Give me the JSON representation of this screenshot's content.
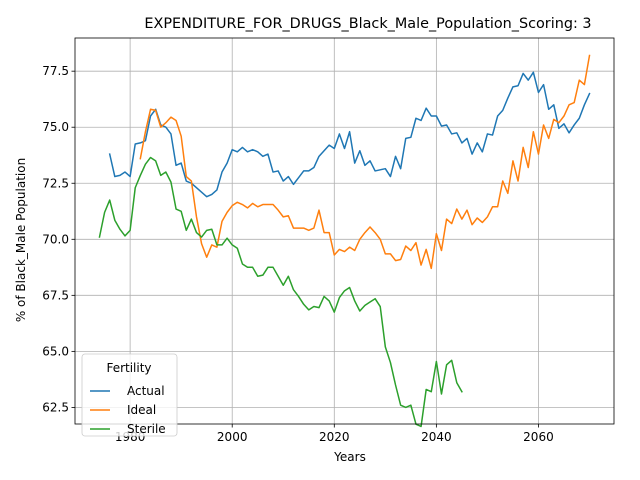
{
  "chart_data": {
    "type": "line",
    "title": "EXPENDITURE_FOR_DRUGS_Black_Male_Population_Scoring: 3",
    "xlabel": "Years",
    "ylabel": "% of Black_Male Population",
    "xlim": [
      1969.2,
      2074.8
    ],
    "ylim": [
      61.76,
      78.98
    ],
    "xticks": [
      1980,
      2000,
      2020,
      2040,
      2060
    ],
    "yticks": [
      62.5,
      65.0,
      67.5,
      70.0,
      72.5,
      75.0,
      77.5
    ],
    "ytick_labels": [
      "62.5",
      "65.0",
      "67.5",
      "70.0",
      "72.5",
      "75.0",
      "77.5"
    ],
    "grid": true,
    "legend": {
      "title": "Fertility",
      "position": "lower-left"
    },
    "series": [
      {
        "name": "Actual",
        "color": "#1f77b4",
        "x": [
          1976,
          1977,
          1978,
          1979,
          1980,
          1981,
          1982,
          1983,
          1984,
          1985,
          1986,
          1987,
          1988,
          1989,
          1990,
          1991,
          1992,
          1993,
          1994,
          1995,
          1996,
          1997,
          1998,
          1999,
          2000,
          2001,
          2002,
          2003,
          2004,
          2005,
          2006,
          2007,
          2008,
          2009,
          2010,
          2011,
          2012,
          2013,
          2014,
          2015,
          2016,
          2017,
          2018,
          2019,
          2020,
          2021,
          2022,
          2023,
          2024,
          2025,
          2026,
          2027,
          2028,
          2029,
          2030,
          2031,
          2032,
          2033,
          2034,
          2035,
          2036,
          2037,
          2038,
          2039,
          2040,
          2041,
          2042,
          2043,
          2044,
          2045,
          2046,
          2047,
          2048,
          2049,
          2050,
          2051,
          2052,
          2053,
          2054,
          2055,
          2056,
          2057,
          2058,
          2059,
          2060,
          2061,
          2062,
          2063,
          2064,
          2065,
          2066,
          2067,
          2068,
          2069,
          2070
        ],
        "y": [
          73.8,
          72.8,
          72.85,
          73.0,
          72.8,
          74.25,
          74.3,
          74.4,
          75.5,
          75.8,
          75.1,
          75.0,
          74.7,
          73.3,
          73.4,
          72.6,
          72.5,
          72.3,
          72.1,
          71.9,
          72.0,
          72.2,
          73.0,
          73.4,
          74.0,
          73.9,
          74.1,
          73.9,
          74.0,
          73.9,
          73.7,
          73.8,
          73.0,
          73.05,
          72.6,
          72.8,
          72.45,
          72.75,
          73.05,
          73.05,
          73.2,
          73.7,
          73.95,
          74.2,
          74.05,
          74.7,
          74.05,
          74.8,
          73.4,
          73.95,
          73.3,
          73.5,
          73.05,
          73.1,
          73.15,
          72.8,
          73.7,
          73.15,
          74.5,
          74.55,
          75.4,
          75.3,
          75.85,
          75.5,
          75.5,
          75.05,
          75.1,
          74.7,
          74.75,
          74.3,
          74.5,
          73.8,
          74.3,
          73.9,
          74.7,
          74.65,
          75.5,
          75.75,
          76.3,
          76.8,
          76.85,
          77.4,
          77.1,
          77.45,
          76.55,
          76.9,
          75.8,
          76.0,
          74.95,
          75.15,
          74.75,
          75.1,
          75.4,
          76.0,
          76.5
        ]
      },
      {
        "name": "Ideal",
        "color": "#ff7f0e",
        "x": [
          1982,
          1983,
          1984,
          1985,
          1986,
          1987,
          1988,
          1989,
          1990,
          1991,
          1992,
          1993,
          1994,
          1995,
          1996,
          1997,
          1998,
          1999,
          2000,
          2001,
          2002,
          2003,
          2004,
          2005,
          2006,
          2007,
          2008,
          2009,
          2010,
          2011,
          2012,
          2013,
          2014,
          2015,
          2016,
          2017,
          2018,
          2019,
          2020,
          2021,
          2022,
          2023,
          2024,
          2025,
          2026,
          2027,
          2028,
          2029,
          2030,
          2031,
          2032,
          2033,
          2034,
          2035,
          2036,
          2037,
          2038,
          2039,
          2040,
          2041,
          2042,
          2043,
          2044,
          2045,
          2046,
          2047,
          2048,
          2049,
          2050,
          2051,
          2052,
          2053,
          2054,
          2055,
          2056,
          2057,
          2058,
          2059,
          2060,
          2061,
          2062,
          2063,
          2064,
          2065,
          2066,
          2067,
          2068,
          2069,
          2070
        ],
        "y": [
          73.6,
          74.8,
          75.8,
          75.75,
          75.0,
          75.2,
          75.45,
          75.3,
          74.6,
          72.8,
          72.6,
          71.0,
          69.8,
          69.2,
          69.75,
          69.65,
          70.8,
          71.2,
          71.5,
          71.65,
          71.55,
          71.4,
          71.6,
          71.45,
          71.55,
          71.55,
          71.55,
          71.3,
          71.0,
          71.05,
          70.5,
          70.5,
          70.5,
          70.4,
          70.5,
          71.3,
          70.3,
          70.3,
          69.3,
          69.55,
          69.45,
          69.65,
          69.5,
          70.0,
          70.3,
          70.55,
          70.3,
          70.0,
          69.35,
          69.35,
          69.05,
          69.1,
          69.7,
          69.5,
          69.85,
          68.85,
          69.55,
          68.7,
          70.25,
          69.5,
          70.9,
          70.7,
          71.35,
          70.9,
          71.3,
          70.65,
          70.95,
          70.75,
          71.0,
          71.45,
          71.45,
          72.6,
          72.05,
          73.5,
          72.6,
          74.1,
          73.2,
          74.8,
          73.8,
          75.1,
          74.5,
          75.35,
          75.2,
          75.5,
          76.0,
          76.1,
          77.1,
          76.9,
          78.2
        ]
      },
      {
        "name": "Sterile",
        "color": "#2ca02c",
        "x": [
          1974,
          1975,
          1976,
          1977,
          1978,
          1979,
          1980,
          1981,
          1982,
          1983,
          1984,
          1985,
          1986,
          1987,
          1988,
          1989,
          1990,
          1991,
          1992,
          1993,
          1994,
          1995,
          1996,
          1997,
          1998,
          1999,
          2000,
          2001,
          2002,
          2003,
          2004,
          2005,
          2006,
          2007,
          2008,
          2009,
          2010,
          2011,
          2012,
          2013,
          2014,
          2015,
          2016,
          2017,
          2018,
          2019,
          2020,
          2021,
          2022,
          2023,
          2024,
          2025,
          2026,
          2027,
          2028,
          2029,
          2030,
          2031,
          2032,
          2033,
          2034,
          2035,
          2036,
          2037,
          2038,
          2039,
          2040,
          2041,
          2042,
          2043,
          2044,
          2045
        ],
        "y": [
          70.1,
          71.2,
          71.75,
          70.85,
          70.45,
          70.15,
          70.4,
          72.3,
          72.85,
          73.35,
          73.65,
          73.5,
          72.85,
          73.0,
          72.55,
          71.35,
          71.25,
          70.4,
          70.9,
          70.3,
          70.1,
          70.4,
          70.45,
          69.75,
          69.75,
          70.05,
          69.75,
          69.6,
          68.9,
          68.75,
          68.75,
          68.35,
          68.4,
          68.75,
          68.75,
          68.35,
          67.95,
          68.35,
          67.75,
          67.45,
          67.1,
          66.85,
          67.0,
          66.95,
          67.45,
          67.25,
          66.75,
          67.4,
          67.7,
          67.85,
          67.25,
          66.8,
          67.05,
          67.2,
          67.35,
          67.0,
          65.2,
          64.5,
          63.5,
          62.6,
          62.5,
          62.6,
          61.75,
          61.65,
          63.3,
          63.2,
          64.55,
          63.1,
          64.4,
          64.6,
          63.6,
          63.2
        ]
      }
    ]
  }
}
